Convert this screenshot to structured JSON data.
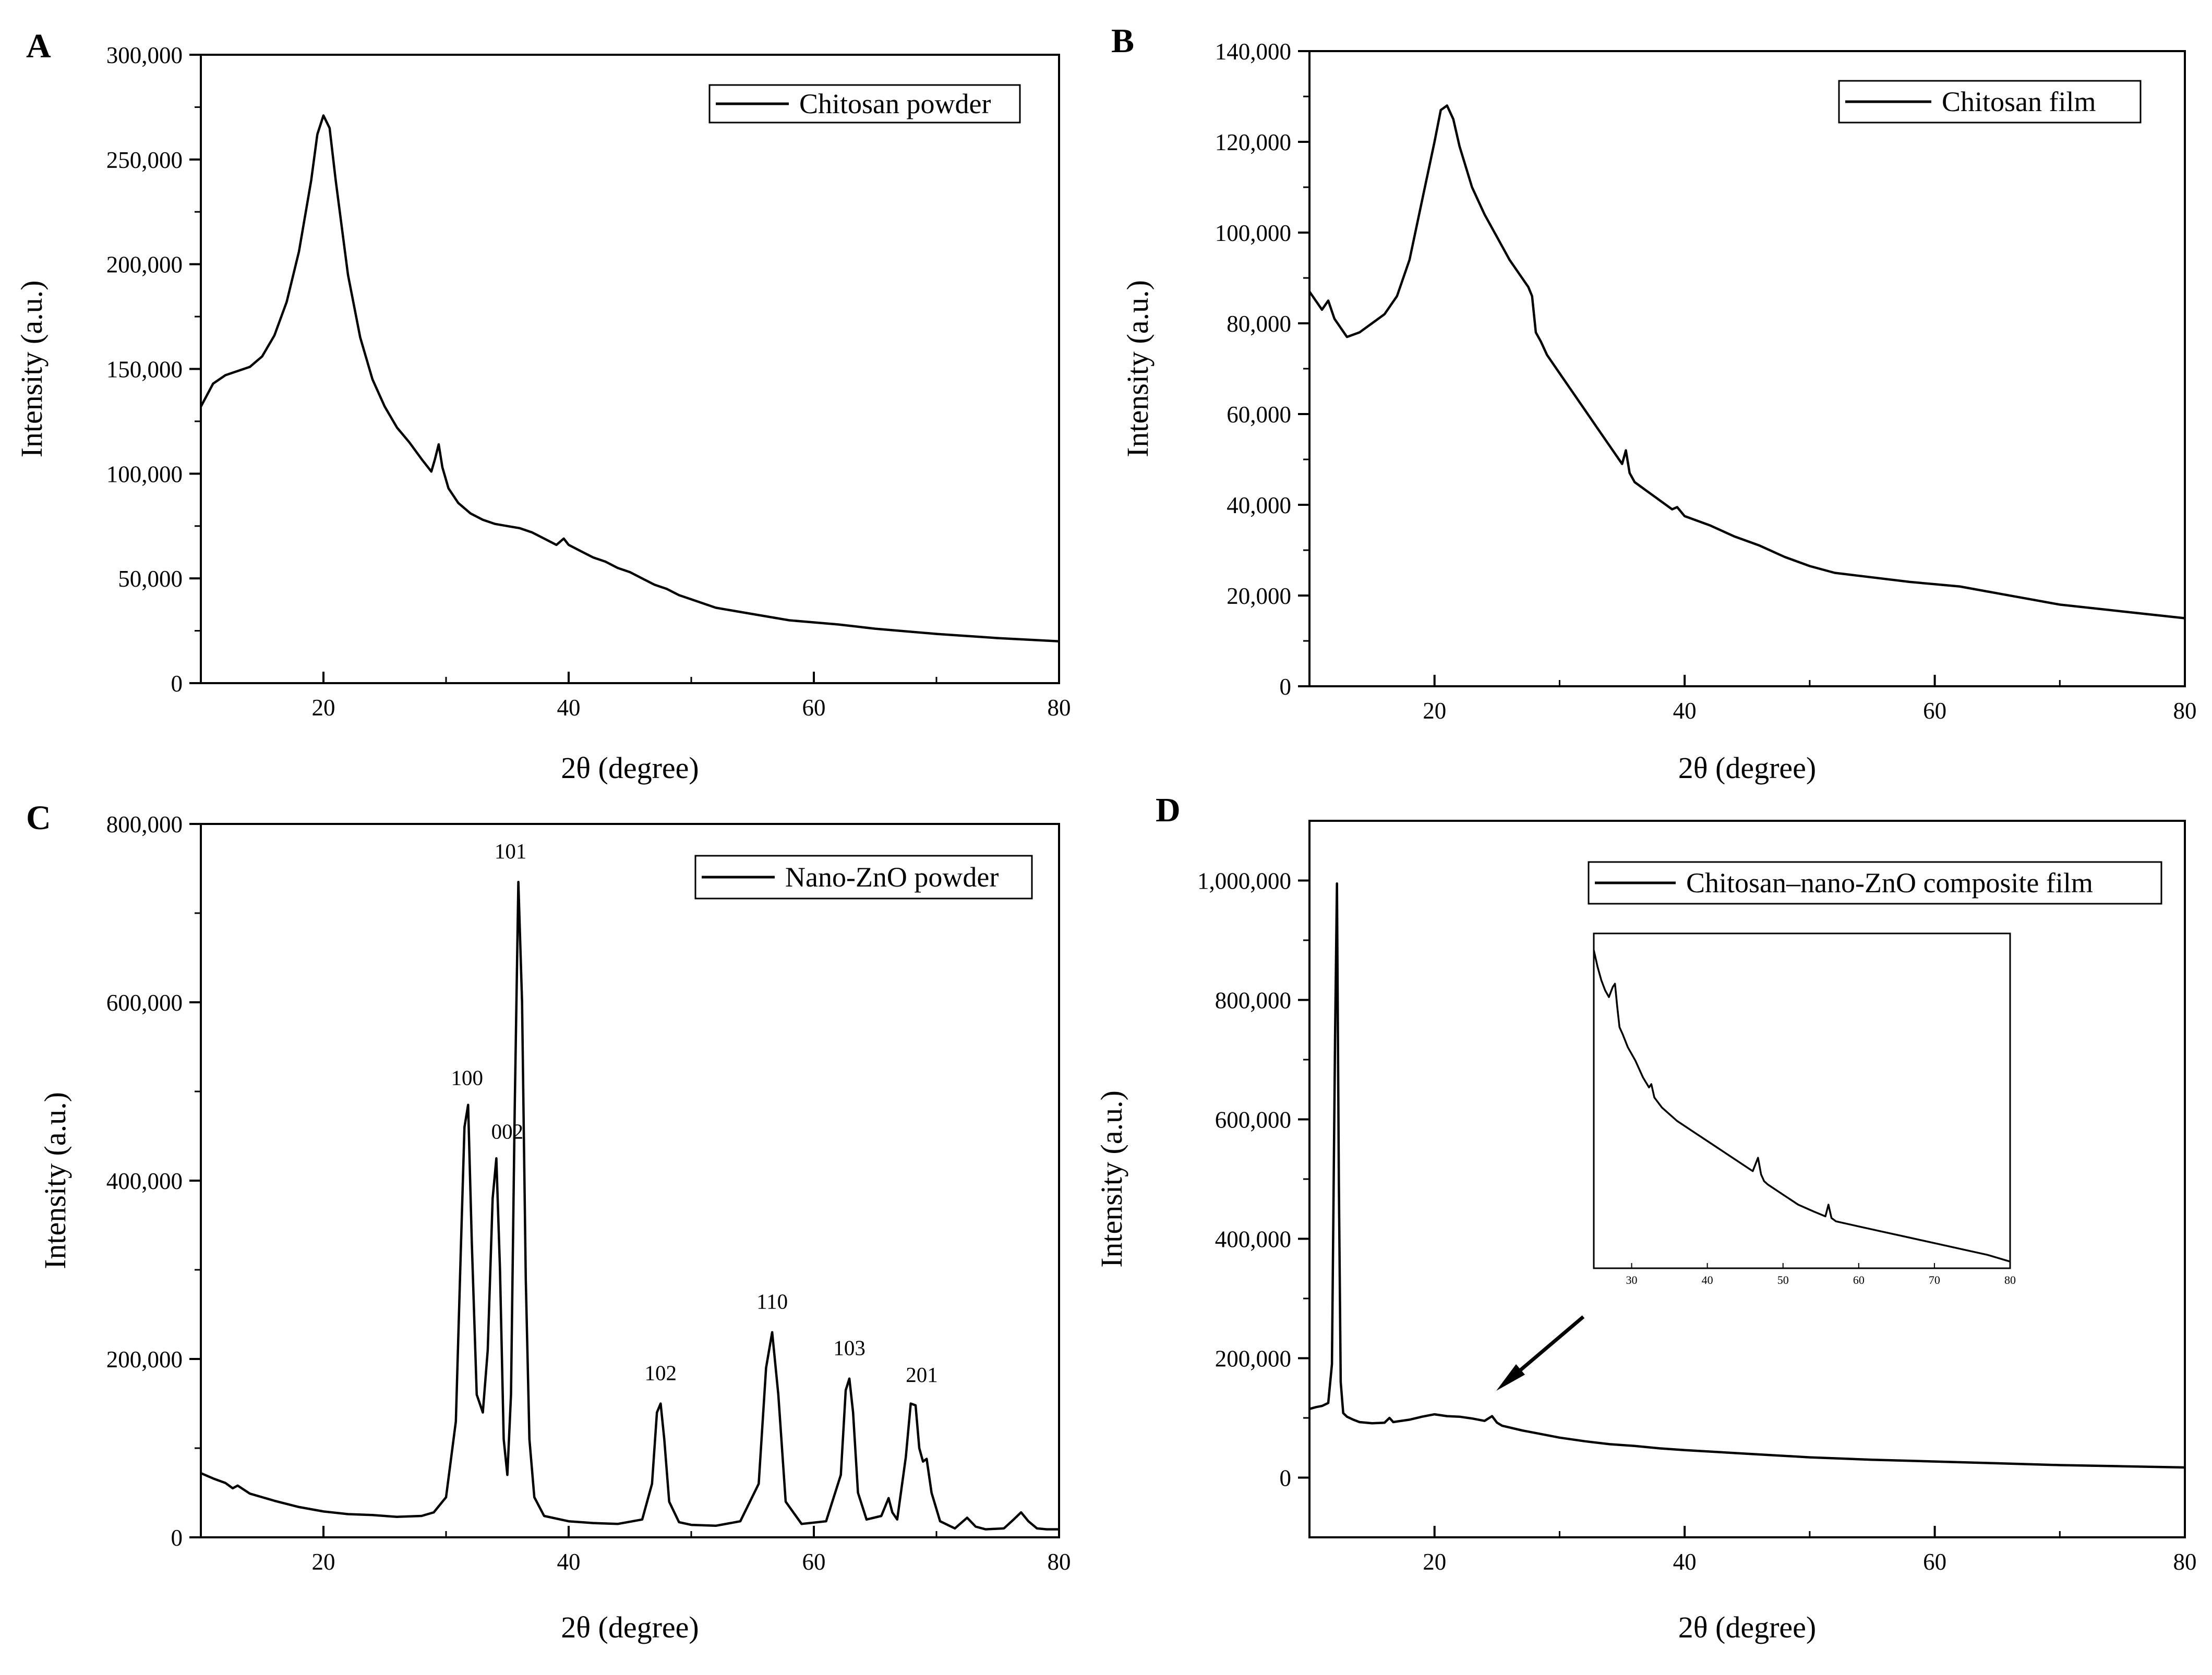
{
  "chart_data": [
    {
      "panel": "A",
      "type": "line",
      "xlabel": "2θ (degree)",
      "ylabel": "Intensity (a.u.)",
      "xlim": [
        10,
        80
      ],
      "ylim": [
        0,
        300000
      ],
      "xticks": [
        20,
        40,
        60,
        80
      ],
      "xtick_labels": [
        "20",
        "40",
        "60",
        "80"
      ],
      "yticks": [
        0,
        50000,
        100000,
        150000,
        200000,
        250000,
        300000
      ],
      "ytick_labels": [
        "0",
        "50,000",
        "100,000",
        "150,000",
        "200,000",
        "250,000",
        "300,000"
      ],
      "legend": "Chitosan powder",
      "legend_position": "top-right",
      "series": [
        {
          "name": "Chitosan powder",
          "x": [
            10,
            11,
            12,
            13,
            14,
            15,
            16,
            17,
            18,
            19,
            19.5,
            20,
            20.5,
            21,
            22,
            23,
            24,
            25,
            26,
            27,
            28,
            28.8,
            29.1,
            29.4,
            29.7,
            30.2,
            31,
            32,
            33,
            34,
            35,
            36,
            37,
            38,
            39,
            39.6,
            40,
            41,
            42,
            43,
            44,
            45,
            46,
            47,
            48,
            49,
            50,
            52,
            55,
            58,
            60,
            62,
            65,
            68,
            70,
            75,
            80
          ],
          "y": [
            132000,
            143000,
            147000,
            149000,
            151000,
            156000,
            166000,
            182000,
            206000,
            240000,
            262000,
            271000,
            265000,
            240000,
            195000,
            165000,
            145000,
            132000,
            122000,
            115000,
            107000,
            101000,
            107000,
            114000,
            103000,
            93000,
            86000,
            81000,
            78000,
            76000,
            75000,
            74000,
            72000,
            69000,
            66000,
            69000,
            66000,
            63000,
            60000,
            58000,
            55000,
            53000,
            50000,
            47000,
            45000,
            42000,
            40000,
            36000,
            33000,
            30000,
            29000,
            28000,
            26000,
            24500,
            23500,
            21500,
            20000
          ]
        }
      ]
    },
    {
      "panel": "B",
      "type": "line",
      "xlabel": "2θ (degree)",
      "ylabel": "Intensity (a.u.)",
      "xlim": [
        10,
        80
      ],
      "ylim": [
        0,
        140000
      ],
      "xticks": [
        20,
        40,
        60,
        80
      ],
      "xtick_labels": [
        "20",
        "40",
        "60",
        "80"
      ],
      "yticks": [
        0,
        20000,
        40000,
        60000,
        80000,
        100000,
        120000,
        140000
      ],
      "ytick_labels": [
        "0",
        "20,000",
        "40,000",
        "60,000",
        "80,000",
        "100,000",
        "120,000",
        "140,000"
      ],
      "legend": "Chitosan film",
      "legend_position": "top-right",
      "series": [
        {
          "name": "Chitosan film",
          "x": [
            10,
            10.5,
            11,
            11.5,
            12,
            13,
            14,
            15,
            16,
            17,
            18,
            19,
            20,
            20.5,
            21,
            21.5,
            22,
            23,
            24,
            25,
            26,
            27,
            27.5,
            27.8,
            28.1,
            28.5,
            29,
            30,
            31,
            32,
            33,
            34,
            35,
            35.3,
            35.6,
            36,
            37,
            38,
            39,
            39.4,
            40,
            42,
            44,
            46,
            48,
            50,
            52,
            55,
            58,
            60,
            62,
            65,
            68,
            70,
            75,
            80
          ],
          "y": [
            87000,
            85000,
            83000,
            85000,
            81000,
            77000,
            78000,
            80000,
            82000,
            86000,
            94000,
            107000,
            120000,
            127000,
            128000,
            125000,
            119000,
            110000,
            104000,
            99000,
            94000,
            90000,
            88000,
            86000,
            78000,
            76000,
            73000,
            69000,
            65000,
            61000,
            57000,
            53000,
            49000,
            52000,
            47000,
            45000,
            43000,
            41000,
            39000,
            39500,
            37500,
            35500,
            33000,
            31000,
            28500,
            26500,
            25000,
            24000,
            23000,
            22500,
            22000,
            20500,
            19000,
            18000,
            16500,
            15000
          ]
        }
      ]
    },
    {
      "panel": "C",
      "type": "line",
      "xlabel": "2θ (degree)",
      "ylabel": "Intensity (a.u.)",
      "xlim": [
        10,
        80
      ],
      "ylim": [
        0,
        800000
      ],
      "xticks": [
        20,
        40,
        60,
        80
      ],
      "xtick_labels": [
        "20",
        "40",
        "60",
        "80"
      ],
      "yticks": [
        0,
        200000,
        400000,
        600000,
        800000
      ],
      "ytick_labels": [
        "0",
        "200,000",
        "400,000",
        "600,000",
        "800,000"
      ],
      "legend": "Nano-ZnO powder",
      "legend_position": "top-right",
      "series": [
        {
          "name": "Nano-ZnO powder",
          "x": [
            10,
            11,
            12,
            12.6,
            13,
            14,
            16,
            18,
            20,
            22,
            24,
            26,
            28,
            29,
            30,
            30.8,
            31.2,
            31.5,
            31.8,
            32.1,
            32.5,
            33,
            33.4,
            33.8,
            34.1,
            34.4,
            34.7,
            35,
            35.3,
            35.6,
            35.9,
            36.2,
            36.5,
            36.8,
            37.2,
            38,
            40,
            42,
            44,
            46,
            46.8,
            47.2,
            47.5,
            47.8,
            48.2,
            49,
            50,
            52,
            54,
            55.5,
            56.1,
            56.6,
            57.1,
            57.7,
            59,
            61,
            62.2,
            62.6,
            62.9,
            63.2,
            63.6,
            64.3,
            65.5,
            66.1,
            66.4,
            66.8,
            67.5,
            67.9,
            68.3,
            68.6,
            68.9,
            69.2,
            69.6,
            70.3,
            71.5,
            72.5,
            73.2,
            74,
            75.5,
            76.3,
            76.9,
            77.5,
            78.2,
            79,
            80
          ],
          "y": [
            72000,
            66000,
            61000,
            55000,
            58000,
            49000,
            41000,
            34000,
            29000,
            26000,
            25000,
            23000,
            24000,
            28000,
            45000,
            130000,
            320000,
            460000,
            485000,
            330000,
            160000,
            140000,
            210000,
            380000,
            425000,
            300000,
            110000,
            70000,
            160000,
            480000,
            735000,
            600000,
            290000,
            110000,
            45000,
            24000,
            18000,
            16000,
            15000,
            20000,
            60000,
            140000,
            150000,
            110000,
            40000,
            17000,
            14000,
            13000,
            18000,
            60000,
            190000,
            230000,
            160000,
            40000,
            15000,
            18000,
            70000,
            165000,
            178000,
            140000,
            50000,
            20000,
            24000,
            44000,
            28000,
            20000,
            90000,
            150000,
            148000,
            100000,
            85000,
            88000,
            50000,
            18000,
            10000,
            22000,
            12000,
            9000,
            10000,
            20000,
            28000,
            18000,
            10000,
            9000,
            9000
          ]
        }
      ]
    },
    {
      "panel": "D",
      "type": "line",
      "xlabel": "2θ (degree)",
      "ylabel": "Intensity (a.u.)",
      "xlim": [
        10,
        80
      ],
      "ylim": [
        -100000,
        1100000
      ],
      "xticks": [
        20,
        40,
        60,
        80
      ],
      "xtick_labels": [
        "20",
        "40",
        "60",
        "80"
      ],
      "yticks": [
        0,
        200000,
        400000,
        600000,
        800000,
        1000000
      ],
      "ytick_labels": [
        "0",
        "200,000",
        "400,000",
        "600,000",
        "800,000",
        "1,000,000"
      ],
      "legend": "Chitosan–nano-ZnO composite film",
      "legend_position": "top-right",
      "series": [
        {
          "name": "Chitosan–nano-ZnO composite film",
          "x": [
            10,
            10.5,
            11,
            11.5,
            11.8,
            12.05,
            12.2,
            12.35,
            12.5,
            12.7,
            13,
            13.5,
            14,
            15,
            16,
            16.4,
            16.7,
            17,
            18,
            19,
            20,
            21,
            22,
            23,
            24,
            24.6,
            25,
            25.4,
            26,
            27,
            28,
            29,
            30,
            32,
            34,
            36,
            38,
            40,
            45,
            50,
            55,
            60,
            65,
            70,
            75,
            80
          ],
          "y": [
            115000,
            118000,
            120000,
            125000,
            190000,
            740000,
            995000,
            500000,
            160000,
            108000,
            102000,
            97000,
            93000,
            91000,
            92000,
            100000,
            93000,
            94000,
            97000,
            102000,
            106000,
            103000,
            102000,
            99000,
            95000,
            103000,
            92000,
            87000,
            84000,
            79000,
            75000,
            71000,
            67000,
            61000,
            56000,
            53000,
            49000,
            46000,
            40000,
            34000,
            30000,
            27000,
            24000,
            21000,
            19000,
            17000
          ]
        }
      ],
      "inset": {
        "xlim": [
          25,
          80
        ],
        "xticks": [
          30,
          40,
          50,
          60,
          70,
          80
        ],
        "xtick_labels": [
          "30",
          "40",
          "50",
          "60",
          "70",
          "80"
        ],
        "ylim": [
          0,
          1
        ],
        "x": [
          25,
          25.5,
          26,
          26.5,
          27,
          27.5,
          27.8,
          28.1,
          28.4,
          28.8,
          29.5,
          30.5,
          31.5,
          32.3,
          32.6,
          33,
          34,
          35,
          36,
          38,
          40,
          42,
          44,
          46,
          46.7,
          47.1,
          47.5,
          48,
          50,
          52,
          54,
          55.6,
          56,
          56.4,
          57,
          60,
          63,
          66,
          70,
          74,
          77,
          80
        ],
        "y": [
          0.95,
          0.9,
          0.86,
          0.83,
          0.81,
          0.84,
          0.85,
          0.78,
          0.72,
          0.7,
          0.66,
          0.62,
          0.57,
          0.54,
          0.55,
          0.51,
          0.48,
          0.46,
          0.44,
          0.41,
          0.38,
          0.35,
          0.32,
          0.29,
          0.33,
          0.28,
          0.26,
          0.25,
          0.22,
          0.19,
          0.17,
          0.155,
          0.19,
          0.15,
          0.14,
          0.125,
          0.11,
          0.095,
          0.075,
          0.055,
          0.04,
          0.02
        ]
      }
    }
  ],
  "peak_labels": [
    {
      "text": "100",
      "x": 31.8,
      "y": 485000
    },
    {
      "text": "002",
      "x": 34.4,
      "y": 425000
    },
    {
      "text": "101",
      "x": 35.9,
      "y": 735000
    },
    {
      "text": "102",
      "x": 47.5,
      "y": 150000
    },
    {
      "text": "110",
      "x": 56.6,
      "y": 230000
    },
    {
      "text": "103",
      "x": 62.9,
      "y": 178000
    },
    {
      "text": "201",
      "x": 68.3,
      "y": 148000
    }
  ],
  "colors": {
    "line": "#000000",
    "background": "#ffffff"
  }
}
